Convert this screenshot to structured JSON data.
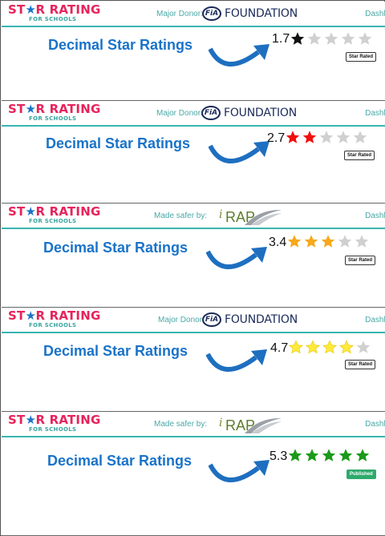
{
  "logo": {
    "main_pre": "ST",
    "main_post": "R RATING",
    "sub": "FOR SCHOOLS"
  },
  "donor_labels": {
    "fia": "Major Donor:",
    "irap": "Made safer by:"
  },
  "fia_badge": "FiA",
  "fia_name": "FOUNDATION",
  "irap": {
    "i": "i",
    "rap": "RAP"
  },
  "dashboard_label": "Dashb",
  "panels": [
    {
      "title": "Decimal Star Ratings",
      "rating": "1.7",
      "filled_stars": 1,
      "star_color": "#111111",
      "badge": "Star Rated",
      "badge_type": "rated",
      "sponsor": "fia"
    },
    {
      "title": "Decimal Star Ratings",
      "rating": "2.7",
      "filled_stars": 2,
      "star_color": "#f20f0f",
      "badge": "Star Rated",
      "badge_type": "rated",
      "sponsor": "fia"
    },
    {
      "title": "Decimal Star Ratings",
      "rating": "3.4",
      "filled_stars": 3,
      "star_color": "#f7a81b",
      "badge": "Star Rated",
      "badge_type": "rated",
      "sponsor": "irap"
    },
    {
      "title": "Decimal Star Ratings",
      "rating": "4.7",
      "filled_stars": 4,
      "star_color": "#ffe93b",
      "badge": "Star Rated",
      "badge_type": "rated",
      "sponsor": "fia"
    },
    {
      "title": "Decimal Star Ratings",
      "rating": "5.3",
      "filled_stars": 5,
      "star_color": "#1a9a1a",
      "badge": "Published",
      "badge_type": "published",
      "sponsor": "irap"
    }
  ],
  "colors": {
    "empty_star": "#d0d0d0",
    "title": "#1a73c9",
    "arrow": "#1e6fc0",
    "brand_red": "#e8235b",
    "teal": "#39b5b0"
  }
}
